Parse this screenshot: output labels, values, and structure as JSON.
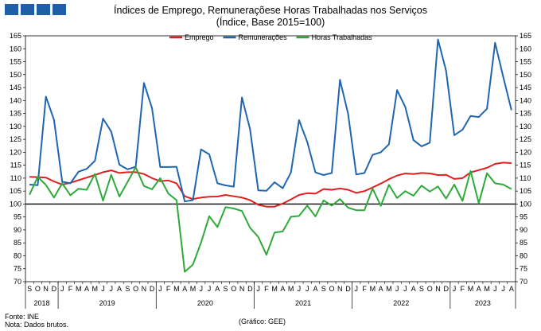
{
  "header": {
    "title": "Índices de Emprego, Remuneraçõese Horas Trabalhadas nos Serviços",
    "subtitle": "(Índice, Base 2015=100)"
  },
  "footer": {
    "source": "Fonte: INE",
    "note": "Nota: Dados brutos.",
    "credit": "(Gráfico: GEE)"
  },
  "chart_data": {
    "type": "line",
    "title": "Índices de Emprego, Remuneraçõese Horas Trabalhadas nos Serviços",
    "subtitle": "(Índice, Base 2015=100)",
    "ylim": [
      70,
      165
    ],
    "yticks": [
      70,
      75,
      80,
      85,
      90,
      95,
      100,
      105,
      110,
      115,
      120,
      125,
      130,
      135,
      140,
      145,
      150,
      155,
      160,
      165
    ],
    "reference_line": 100,
    "legend_position": "top-center",
    "grid": false,
    "x": [
      "2018-09",
      "2018-10",
      "2018-11",
      "2018-12",
      "2019-01",
      "2019-02",
      "2019-03",
      "2019-04",
      "2019-05",
      "2019-06",
      "2019-07",
      "2019-08",
      "2019-09",
      "2019-10",
      "2019-11",
      "2019-12",
      "2020-01",
      "2020-02",
      "2020-03",
      "2020-04",
      "2020-05",
      "2020-06",
      "2020-07",
      "2020-08",
      "2020-09",
      "2020-10",
      "2020-11",
      "2020-12",
      "2021-01",
      "2021-02",
      "2021-03",
      "2021-04",
      "2021-05",
      "2021-06",
      "2021-07",
      "2021-08",
      "2021-09",
      "2021-10",
      "2021-11",
      "2021-12",
      "2022-01",
      "2022-02",
      "2022-03",
      "2022-04",
      "2022-05",
      "2022-06",
      "2022-07",
      "2022-08",
      "2022-09",
      "2022-10",
      "2022-11",
      "2022-12",
      "2023-01",
      "2023-02",
      "2023-03",
      "2023-04",
      "2023-05",
      "2023-06",
      "2023-07",
      "2023-08"
    ],
    "month_labels": [
      "S",
      "O",
      "N",
      "D",
      "J",
      "F",
      "M",
      "A",
      "M",
      "J",
      "J",
      "A",
      "S",
      "O",
      "N",
      "D",
      "J",
      "F",
      "M",
      "A",
      "M",
      "J",
      "J",
      "A",
      "S",
      "O",
      "N",
      "D",
      "J",
      "F",
      "M",
      "A",
      "M",
      "J",
      "J",
      "A",
      "S",
      "O",
      "N",
      "D",
      "J",
      "F",
      "M",
      "A",
      "M",
      "J",
      "J",
      "A",
      "S",
      "O",
      "N",
      "D",
      "J",
      "F",
      "M",
      "A",
      "M",
      "J",
      "J",
      "A"
    ],
    "years": [
      {
        "label": "2018",
        "start": 0,
        "end": 3
      },
      {
        "label": "2019",
        "start": 4,
        "end": 15
      },
      {
        "label": "2020",
        "start": 16,
        "end": 27
      },
      {
        "label": "2021",
        "start": 28,
        "end": 39
      },
      {
        "label": "2022",
        "start": 40,
        "end": 51
      },
      {
        "label": "2023",
        "start": 52,
        "end": 59
      }
    ],
    "series": [
      {
        "name": "Emprego",
        "color": "#e02020",
        "values": [
          110.5,
          110.4,
          110.2,
          108.7,
          107.5,
          108.2,
          109.2,
          110.2,
          111.2,
          112.3,
          113.0,
          112.0,
          112.3,
          112.3,
          111.6,
          110.0,
          108.8,
          109.1,
          108.0,
          103.0,
          101.9,
          102.5,
          102.8,
          102.9,
          103.5,
          103.0,
          102.5,
          101.5,
          99.7,
          99.0,
          99.0,
          100.2,
          101.8,
          103.5,
          104.2,
          104.0,
          105.8,
          105.5,
          106.0,
          105.5,
          104.3,
          105.0,
          106.4,
          107.9,
          109.6,
          111.0,
          111.8,
          111.6,
          112.0,
          111.8,
          111.2,
          111.3,
          109.7,
          110.0,
          112.2,
          113.1,
          114.0,
          115.5,
          116.0,
          115.8
        ]
      },
      {
        "name": "Remunerações",
        "color": "#2065b0",
        "values": [
          107.5,
          107.3,
          141.5,
          132.5,
          108.6,
          108.0,
          112.5,
          113.6,
          116.7,
          133.0,
          128.0,
          115.2,
          113.4,
          114.4,
          146.8,
          137.0,
          114.3,
          114.3,
          114.4,
          101.0,
          101.5,
          121.1,
          119.2,
          108.0,
          107.2,
          106.7,
          141.2,
          128.9,
          105.3,
          105.1,
          108.4,
          106.1,
          112.2,
          132.4,
          124.0,
          112.2,
          111.2,
          112.0,
          148.0,
          134.9,
          111.4,
          112.0,
          119.0,
          120.0,
          123.1,
          144.0,
          137.5,
          124.7,
          122.3,
          123.7,
          163.6,
          151.5,
          126.6,
          128.7,
          134.0,
          133.6,
          136.8,
          162.3,
          149.0,
          136.3
        ]
      },
      {
        "name": "Horas Trabalhadas",
        "color": "#2eaa3a",
        "values": [
          103.6,
          110.5,
          107.4,
          102.5,
          108.0,
          103.4,
          105.9,
          105.5,
          111.6,
          101.3,
          111.3,
          102.9,
          108.5,
          114.2,
          107.0,
          105.7,
          110.0,
          104.0,
          101.5,
          73.8,
          76.6,
          85.1,
          95.3,
          91.1,
          98.8,
          98.3,
          97.3,
          90.8,
          87.3,
          80.4,
          89.0,
          89.4,
          95.1,
          95.4,
          99.4,
          95.2,
          101.4,
          99.4,
          101.9,
          98.6,
          97.6,
          97.6,
          106.0,
          99.3,
          107.4,
          102.3,
          105.0,
          103.2,
          107.1,
          104.8,
          106.8,
          102.1,
          107.5,
          101.2,
          112.8,
          100.3,
          111.9,
          108.0,
          107.5,
          105.8
        ]
      }
    ]
  }
}
